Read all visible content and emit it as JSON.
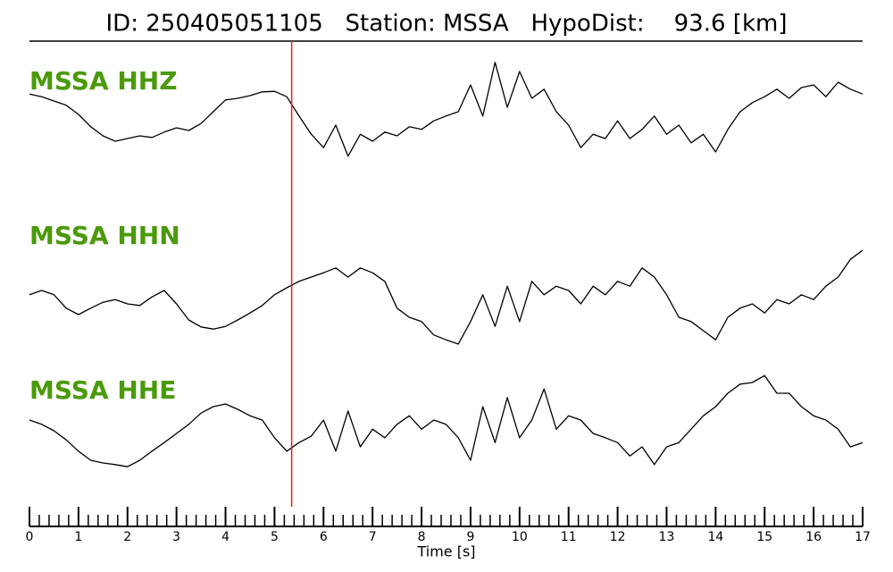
{
  "chart_data": {
    "type": "seismogram",
    "title": "ID: 250405051105   Station: MSSA   HypoDist:    93.6 [km]",
    "xlabel": "Time [s]",
    "xlim": [
      0,
      17
    ],
    "xticks": [
      0,
      1,
      2,
      3,
      4,
      5,
      6,
      7,
      8,
      9,
      10,
      11,
      12,
      13,
      14,
      15,
      16,
      17
    ],
    "xminorticks": [
      0.2,
      0.4,
      0.6,
      0.8,
      1.2,
      1.4,
      1.6,
      1.8,
      2.2,
      2.4,
      2.6,
      2.8,
      3.2,
      3.4,
      3.6,
      3.8,
      4.2,
      4.4,
      4.6,
      4.8,
      5.2,
      5.4,
      5.6,
      5.8,
      6.2,
      6.4,
      6.6,
      6.8,
      7.2,
      7.4,
      7.6,
      7.8,
      8.2,
      8.4,
      8.6,
      8.8,
      9.2,
      9.4,
      9.6,
      9.8,
      10.2,
      10.4,
      10.6,
      10.8,
      11.2,
      11.4,
      11.6,
      11.8,
      12.2,
      12.4,
      12.6,
      12.8,
      13.2,
      13.4,
      13.6,
      13.8,
      14.2,
      14.4,
      14.6,
      14.8,
      15.2,
      15.4,
      15.6,
      15.8,
      16.2,
      16.4,
      16.6,
      16.8
    ],
    "pick_time": 5.35,
    "pick_color": "#e8201a",
    "label_color": "#4a9a0a",
    "x": [
      0,
      0.25,
      0.5,
      0.75,
      1,
      1.25,
      1.5,
      1.75,
      2,
      2.25,
      2.5,
      2.75,
      3,
      3.25,
      3.5,
      3.75,
      4,
      4.25,
      4.5,
      4.75,
      5,
      5.25,
      5.5,
      5.75,
      6,
      6.25,
      6.5,
      6.75,
      7,
      7.25,
      7.5,
      7.75,
      8,
      8.25,
      8.5,
      8.75,
      9,
      9.25,
      9.5,
      9.75,
      10,
      10.25,
      10.5,
      10.75,
      11,
      11.25,
      11.5,
      11.75,
      12,
      12.25,
      12.5,
      12.75,
      13,
      13.25,
      13.5,
      13.75,
      14,
      14.25,
      14.5,
      14.75,
      15,
      15.25,
      15.5,
      15.75,
      16,
      16.25,
      16.5,
      16.75,
      17
    ],
    "series": [
      {
        "name": "MSSA HHZ",
        "color": "#000000",
        "values": [
          0.33,
          0.28,
          0.2,
          0.12,
          -0.05,
          -0.28,
          -0.45,
          -0.55,
          -0.5,
          -0.45,
          -0.48,
          -0.38,
          -0.3,
          -0.35,
          -0.22,
          0,
          0.22,
          0.25,
          0.3,
          0.37,
          0.38,
          0.28,
          -0.08,
          -0.42,
          -0.67,
          -0.25,
          -0.83,
          -0.42,
          -0.55,
          -0.38,
          -0.45,
          -0.28,
          -0.33,
          -0.17,
          -0.08,
          0,
          0.5,
          -0.08,
          0.92,
          0.08,
          0.75,
          0.25,
          0.42,
          0,
          -0.25,
          -0.67,
          -0.42,
          -0.5,
          -0.17,
          -0.5,
          -0.33,
          -0.08,
          -0.42,
          -0.25,
          -0.58,
          -0.42,
          -0.75,
          -0.33,
          0,
          0.17,
          0.28,
          0.42,
          0.25,
          0.45,
          0.5,
          0.28,
          0.55,
          0.42,
          0.33
        ]
      },
      {
        "name": "MSSA HHN",
        "color": "#000000",
        "values": [
          0.17,
          0.25,
          0.17,
          -0.08,
          -0.2,
          -0.08,
          0.03,
          0.08,
          0,
          -0.03,
          0.13,
          0.25,
          0,
          -0.3,
          -0.43,
          -0.47,
          -0.42,
          -0.3,
          -0.17,
          -0.03,
          0.17,
          0.3,
          0.42,
          0.5,
          0.58,
          0.67,
          0.5,
          0.67,
          0.58,
          0.42,
          -0.08,
          -0.25,
          -0.33,
          -0.58,
          -0.67,
          -0.75,
          -0.33,
          0.17,
          -0.42,
          0.33,
          -0.33,
          0.42,
          0.17,
          0.33,
          0.25,
          0,
          0.33,
          0.17,
          0.42,
          0.33,
          0.67,
          0.5,
          0.17,
          -0.25,
          -0.33,
          -0.5,
          -0.67,
          -0.25,
          -0.08,
          0,
          -0.17,
          0.08,
          0,
          0.17,
          0.08,
          0.33,
          0.5,
          0.83,
          1.0
        ]
      },
      {
        "name": "MSSA HHE",
        "color": "#000000",
        "values": [
          0,
          -0.08,
          -0.2,
          -0.37,
          -0.58,
          -0.75,
          -0.8,
          -0.83,
          -0.87,
          -0.75,
          -0.58,
          -0.42,
          -0.25,
          -0.08,
          0.13,
          0.25,
          0.3,
          0.2,
          0.08,
          0,
          -0.33,
          -0.58,
          -0.42,
          -0.3,
          0,
          -0.58,
          0.17,
          -0.5,
          -0.17,
          -0.33,
          -0.08,
          0.08,
          -0.17,
          0,
          -0.08,
          -0.33,
          -0.75,
          0.25,
          -0.42,
          0.42,
          -0.33,
          0,
          0.58,
          -0.17,
          0.08,
          0,
          -0.25,
          -0.33,
          -0.42,
          -0.67,
          -0.5,
          -0.83,
          -0.5,
          -0.42,
          -0.17,
          0.08,
          0.25,
          0.5,
          0.67,
          0.7,
          0.83,
          0.5,
          0.5,
          0.25,
          0.08,
          0,
          -0.17,
          -0.5,
          -0.42
        ]
      }
    ]
  }
}
